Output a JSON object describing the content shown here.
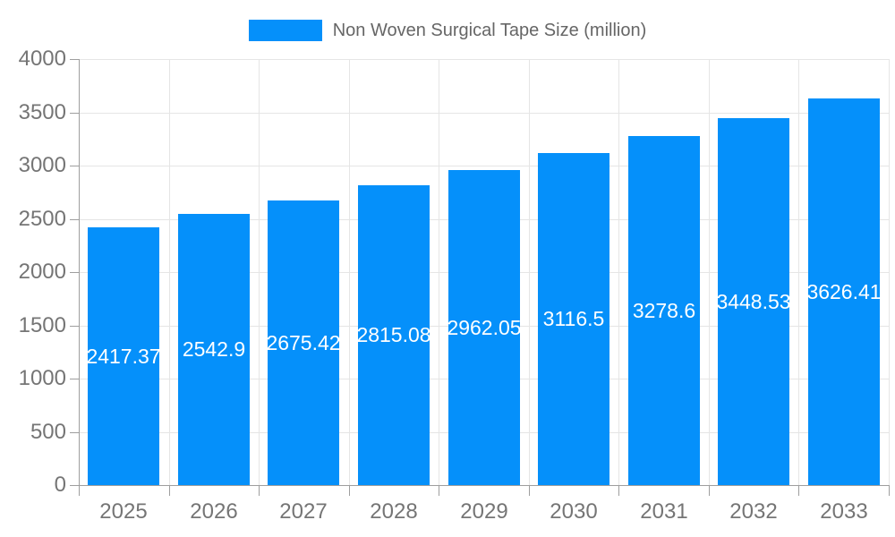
{
  "legend": {
    "label": "Non Woven Surgical Tape Size (million)"
  },
  "chart_data": {
    "type": "bar",
    "title": "Non Woven Surgical Tape Size (million)",
    "categories": [
      "2025",
      "2026",
      "2027",
      "2028",
      "2029",
      "2030",
      "2031",
      "2032",
      "2033"
    ],
    "values": [
      2417.37,
      2542.9,
      2675.42,
      2815.08,
      2962.05,
      3116.5,
      3278.6,
      3448.53,
      3626.41
    ],
    "value_labels": [
      "2417.37",
      "2542.9",
      "2675.42",
      "2815.08",
      "2962.05",
      "3116.5",
      "3278.6",
      "3448.53",
      "3626.41"
    ],
    "xlabel": "",
    "ylabel": "",
    "ylim": [
      0,
      4000
    ],
    "yticks": [
      0,
      500,
      1000,
      1500,
      2000,
      2500,
      3000,
      3500,
      4000
    ],
    "grid": true,
    "legend_position": "top",
    "colors": {
      "bar": "#0590fa",
      "bar_value_text": "#ffffff",
      "grid": "#e5e5e5",
      "axis": "#9e9e9e",
      "tick_text": "#757575",
      "legend_text": "#666666"
    }
  }
}
